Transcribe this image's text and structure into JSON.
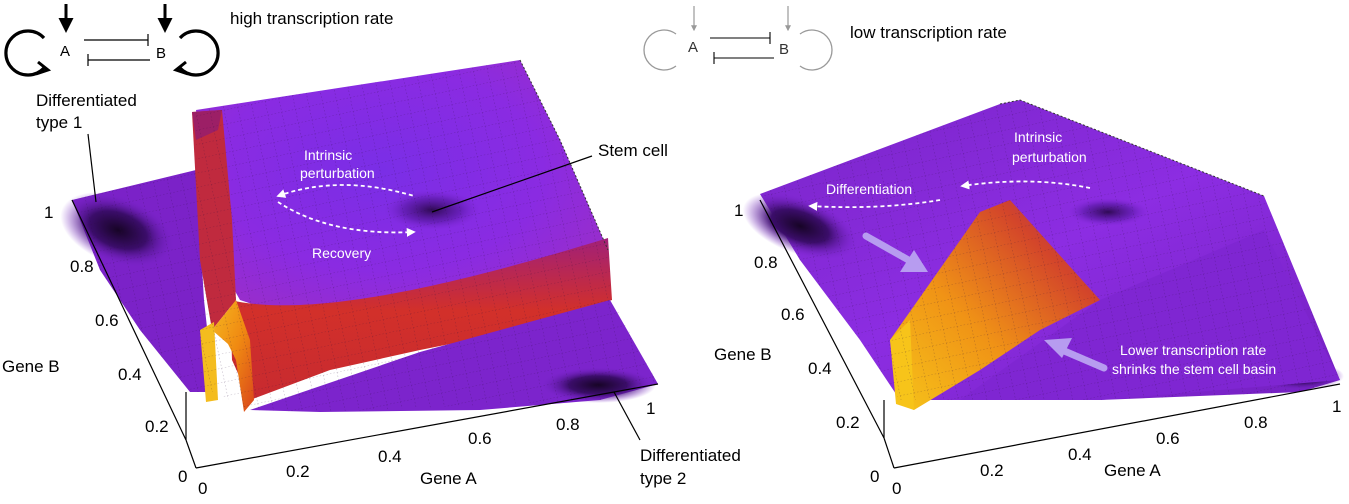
{
  "left_panel": {
    "network_label": "high transcription rate",
    "node_a": "A",
    "node_b": "B",
    "label_diff1_line1": "Differentiated",
    "label_diff1_line2": "type 1",
    "label_stem": "Stem cell",
    "label_diff2_line1": "Differentiated",
    "label_diff2_line2": "type 2",
    "label_perturb_line1": "Intrinsic",
    "label_perturb_line2": "perturbation",
    "label_recovery": "Recovery",
    "axis_x_title": "Gene A",
    "axis_y_title": "Gene B",
    "x_ticks": [
      "0",
      "0.2",
      "0.4",
      "0.6",
      "0.8",
      "1"
    ],
    "y_ticks": [
      "0",
      "0.2",
      "0.4",
      "0.6",
      "0.8",
      "1"
    ]
  },
  "right_panel": {
    "network_label": "low transcription rate",
    "node_a": "A",
    "node_b": "B",
    "label_perturb_line1": "Intrinsic",
    "label_perturb_line2": "perturbation",
    "label_differentiation": "Differentiation",
    "label_lower_line1": "Lower transcription rate",
    "label_lower_line2": "shrinks the stem cell basin",
    "axis_x_title": "Gene  A",
    "axis_y_title": "Gene B",
    "x_ticks": [
      "0",
      "0.2",
      "0.4",
      "0.6",
      "0.8",
      "1"
    ],
    "y_ticks": [
      "0",
      "0.2",
      "0.4",
      "0.6",
      "0.8",
      "1"
    ]
  },
  "colors": {
    "surface_violet": "#8a2be2",
    "surface_purple": "#6a1fa8",
    "surface_dark": "#1a0630",
    "wall_red": "#c8282c",
    "wall_orange": "#f08a10",
    "wall_yellow": "#f5c518",
    "arrow_lilac": "#b79cf0"
  }
}
